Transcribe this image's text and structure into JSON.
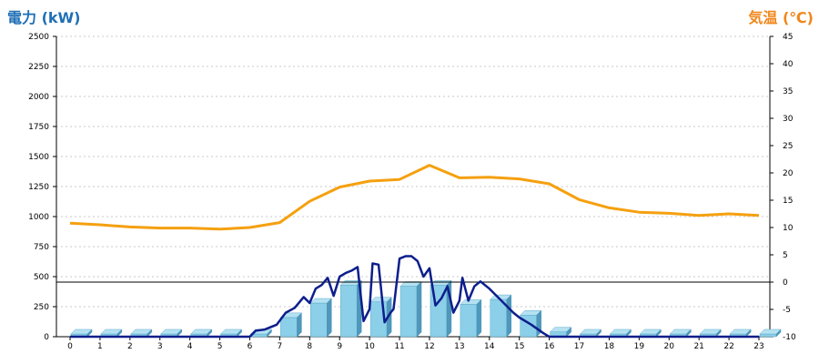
{
  "chart_data": {
    "type": "bar+line",
    "title_left": "電力 (kW)",
    "title_right": "気温 (℃)",
    "colors": {
      "title_left": "#1f6fb5",
      "title_right": "#f0861a",
      "bars": "#8ccfe8",
      "power_line": "#0d1e8c",
      "temperature_line": "#f5a00f",
      "grid": "#c8c8c8",
      "zero_line": "#000000"
    },
    "grid": true,
    "x_tick_labels": [
      "0",
      "1",
      "2",
      "3",
      "4",
      "5",
      "6",
      "7",
      "8",
      "9",
      "10",
      "11",
      "12",
      "13",
      "14",
      "15",
      "16",
      "17",
      "18",
      "19",
      "20",
      "21",
      "22",
      "23"
    ],
    "y_left": {
      "range": [
        0,
        2500
      ],
      "tick_labels": [
        "0",
        "250",
        "500",
        "750",
        "1000",
        "1250",
        "1500",
        "1750",
        "2000",
        "2250",
        "2500"
      ]
    },
    "y_right": {
      "range": [
        -10,
        45
      ],
      "tick_labels": [
        "-10",
        "-5",
        "0",
        "5",
        "10",
        "15",
        "20",
        "25",
        "30",
        "35",
        "40",
        "45"
      ]
    },
    "bars_hourly_kW": {
      "hours": [
        0,
        1,
        2,
        3,
        4,
        5,
        6,
        7,
        8,
        9,
        10,
        11,
        12,
        13,
        14,
        15,
        16,
        17,
        18,
        19,
        20,
        21,
        22,
        23
      ],
      "values": [
        0,
        0,
        0,
        0,
        0,
        0,
        0,
        160,
        280,
        430,
        290,
        420,
        430,
        270,
        310,
        180,
        40,
        0,
        0,
        0,
        0,
        0,
        0,
        0
      ]
    },
    "power_line_kW": {
      "x": [
        0,
        1,
        2,
        3,
        4,
        5,
        6,
        6.2,
        6.5,
        6.9,
        7.2,
        7.5,
        7.8,
        8.0,
        8.2,
        8.4,
        8.6,
        8.8,
        9.0,
        9.2,
        9.4,
        9.6,
        9.8,
        10.0,
        10.1,
        10.3,
        10.5,
        10.7,
        10.8,
        11.0,
        11.2,
        11.4,
        11.6,
        11.8,
        12.0,
        12.2,
        12.4,
        12.6,
        12.8,
        13.0,
        13.1,
        13.3,
        13.5,
        13.7,
        14.0,
        14.4,
        14.8,
        15.0,
        15.4,
        15.8,
        16.0,
        16.4,
        17,
        18,
        19,
        20,
        21,
        22,
        23
      ],
      "y": [
        0,
        0,
        0,
        0,
        0,
        0,
        0,
        50,
        60,
        100,
        200,
        240,
        330,
        280,
        400,
        430,
        490,
        340,
        500,
        530,
        550,
        580,
        130,
        230,
        610,
        600,
        120,
        200,
        230,
        650,
        670,
        670,
        630,
        500,
        570,
        260,
        320,
        420,
        200,
        300,
        490,
        300,
        420,
        460,
        400,
        300,
        200,
        160,
        100,
        30,
        0,
        0,
        0,
        0,
        0,
        0,
        0,
        0,
        0
      ]
    },
    "temperature_line_C": {
      "hours": [
        0,
        1,
        2,
        3,
        4,
        5,
        6,
        7,
        8,
        9,
        10,
        11,
        12,
        13,
        14,
        15,
        16,
        17,
        18,
        19,
        20,
        21,
        22,
        23
      ],
      "values": [
        10.8,
        10.5,
        10.1,
        9.9,
        9.9,
        9.7,
        10.0,
        10.9,
        14.8,
        17.4,
        18.5,
        18.8,
        21.4,
        19.1,
        19.2,
        18.9,
        18.0,
        15.1,
        13.6,
        12.8,
        12.6,
        12.2,
        12.5,
        12.2
      ]
    }
  }
}
